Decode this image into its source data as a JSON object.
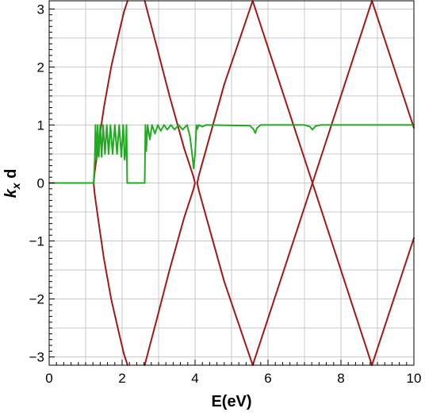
{
  "chart_data": {
    "type": "line",
    "title": "",
    "xlabel": "E(eV)",
    "ylabel_main": "k",
    "ylabel_sub": "x",
    "ylabel_tail": " d",
    "xlim": [
      0,
      10
    ],
    "ylim": [
      -3.1416,
      3.1416
    ],
    "x_ticks": [
      {
        "value": 0,
        "label": "0"
      },
      {
        "value": 2,
        "label": "2"
      },
      {
        "value": 4,
        "label": "4"
      },
      {
        "value": 6,
        "label": "6"
      },
      {
        "value": 8,
        "label": "8"
      },
      {
        "value": 10,
        "label": "10"
      }
    ],
    "y_ticks": [
      {
        "value": -3,
        "label": "−3"
      },
      {
        "value": -2,
        "label": "−2"
      },
      {
        "value": -1,
        "label": "−1"
      },
      {
        "value": 0,
        "label": "0"
      },
      {
        "value": 1,
        "label": "1"
      },
      {
        "value": 2,
        "label": "2"
      },
      {
        "value": 3,
        "label": "3"
      }
    ],
    "grid": true,
    "colors": {
      "bands": "#a01818",
      "transmission": "#22aa22",
      "grid": "#c8c8c8"
    },
    "series": [
      {
        "role": "band-boundary-1",
        "color": "#a01818",
        "x": [
          2.15,
          2.05,
          1.9,
          1.7,
          1.5,
          1.35,
          1.25,
          1.22,
          1.25,
          1.35,
          1.5,
          1.7,
          1.9,
          2.05,
          2.15
        ],
        "y": [
          -3.14,
          -2.95,
          -2.55,
          -2.0,
          -1.3,
          -0.65,
          -0.2,
          0.0,
          0.2,
          0.65,
          1.3,
          2.0,
          2.55,
          2.95,
          3.14
        ]
      },
      {
        "role": "band-boundary-2",
        "color": "#a01818",
        "x": [
          2.62,
          2.72,
          2.95,
          3.3,
          3.7,
          3.95,
          4.0,
          3.95,
          3.7,
          3.3,
          2.95,
          2.72,
          2.62
        ],
        "y": [
          -3.14,
          -2.9,
          -2.35,
          -1.5,
          -0.6,
          -0.12,
          0.0,
          0.12,
          0.6,
          1.5,
          2.35,
          2.9,
          3.14
        ]
      },
      {
        "role": "band-boundary-3",
        "color": "#a01818",
        "x": [
          5.58,
          4.8,
          4.1,
          4.06,
          4.1,
          4.8,
          5.58
        ],
        "y": [
          -3.14,
          -1.7,
          -0.12,
          0.0,
          0.12,
          1.7,
          3.14
        ]
      },
      {
        "role": "band-boundary-4",
        "color": "#a01818",
        "x": [
          5.58,
          7.22,
          8.85
        ],
        "y": [
          -3.14,
          0.0,
          3.14
        ]
      },
      {
        "role": "band-boundary-5",
        "color": "#a01818",
        "x": [
          5.58,
          7.22,
          8.85
        ],
        "y": [
          3.14,
          0.0,
          -3.14
        ]
      },
      {
        "role": "band-boundary-6",
        "color": "#a01818",
        "x": [
          8.85,
          10.0
        ],
        "y": [
          -3.14,
          -0.95
        ]
      },
      {
        "role": "band-boundary-7",
        "color": "#a01818",
        "x": [
          8.85,
          10.0
        ],
        "y": [
          3.14,
          0.95
        ]
      },
      {
        "role": "transmission",
        "color": "#22aa22",
        "x": [
          0.0,
          1.22,
          1.25,
          1.27,
          1.3,
          1.33,
          1.36,
          1.4,
          1.44,
          1.48,
          1.53,
          1.58,
          1.63,
          1.68,
          1.74,
          1.8,
          1.86,
          1.92,
          1.98,
          2.03,
          2.07,
          2.1,
          2.12,
          2.14,
          2.2,
          2.62,
          2.64,
          2.66,
          2.7,
          2.76,
          2.82,
          2.9,
          2.98,
          3.06,
          3.15,
          3.24,
          3.34,
          3.44,
          3.55,
          3.66,
          3.78,
          3.86,
          3.92,
          3.96,
          4.0,
          4.04,
          4.06,
          4.1,
          4.2,
          4.3,
          5.5,
          5.6,
          5.65,
          5.7,
          5.8,
          7.0,
          7.15,
          7.22,
          7.3,
          7.45,
          10.0
        ],
        "y": [
          0.0,
          0.0,
          0.4,
          1.0,
          0.4,
          1.0,
          0.45,
          1.0,
          0.45,
          1.0,
          0.5,
          1.0,
          0.5,
          1.0,
          0.5,
          1.0,
          0.5,
          1.0,
          0.45,
          1.0,
          0.4,
          0.55,
          1.0,
          0.0,
          0.0,
          0.0,
          1.0,
          0.55,
          1.0,
          0.75,
          1.0,
          0.85,
          1.0,
          0.9,
          1.0,
          0.92,
          1.0,
          0.92,
          1.0,
          0.92,
          1.0,
          0.8,
          0.5,
          0.25,
          0.5,
          1.0,
          0.93,
          1.0,
          0.97,
          1.0,
          0.99,
          0.93,
          0.86,
          0.95,
          1.0,
          1.0,
          0.97,
          0.92,
          0.98,
          1.0,
          1.0
        ]
      }
    ]
  }
}
